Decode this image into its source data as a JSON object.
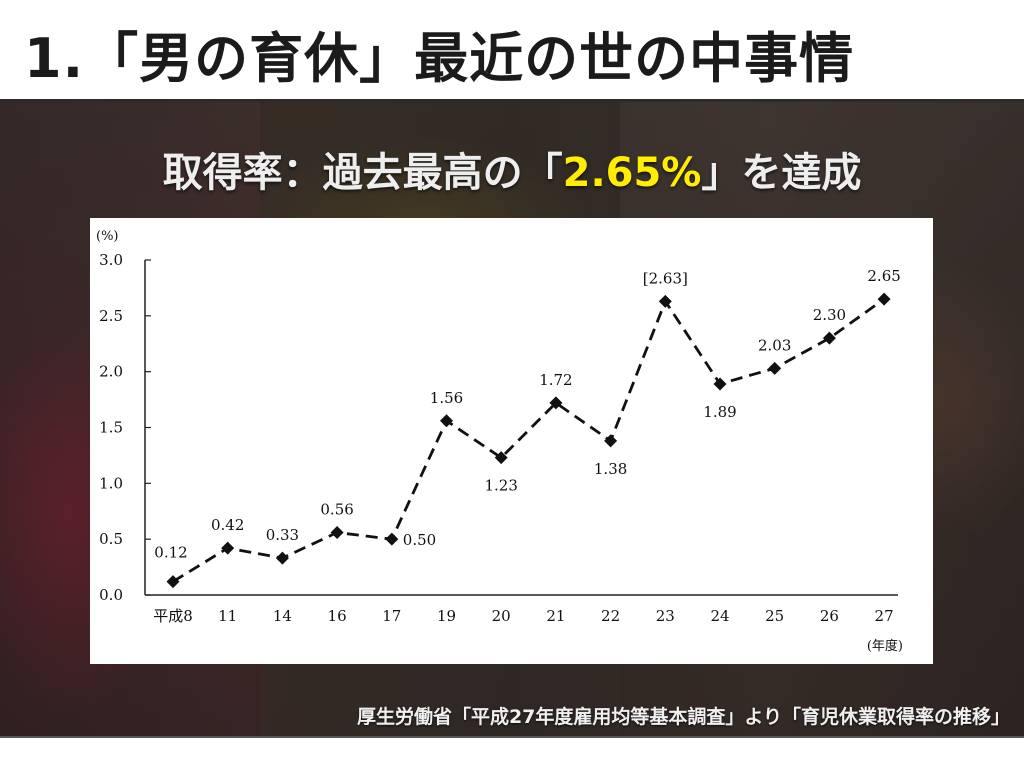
{
  "slide": {
    "title": "1.「男の育休」最近の世の中事情",
    "headline_prefix": "取得率：過去最高の「",
    "headline_value": "2.65%",
    "headline_suffix": "」を達成",
    "source": "厚生労働省「平成27年度雇用均等基本調査」より「育児休業取得率の推移」",
    "colors": {
      "highlight": "#ffee00",
      "title_text": "#1b1b1b",
      "line": "#111111"
    }
  },
  "chart_data": {
    "type": "line",
    "y_unit_label": "(%)",
    "x_unit_label": "(年度)",
    "categories": [
      "平成8",
      "11",
      "14",
      "16",
      "17",
      "19",
      "20",
      "21",
      "22",
      "23",
      "24",
      "25",
      "26",
      "27"
    ],
    "values": [
      0.12,
      0.42,
      0.33,
      0.56,
      0.5,
      1.56,
      1.23,
      1.72,
      1.38,
      2.63,
      1.89,
      2.03,
      2.3,
      2.65
    ],
    "data_labels": [
      "0.12",
      "0.42",
      "0.33",
      "0.56",
      "0.50",
      "1.56",
      "1.23",
      "1.72",
      "1.38",
      "[2.63]",
      "1.89",
      "2.03",
      "2.30",
      "2.65"
    ],
    "y_ticks": [
      "0.0",
      "0.5",
      "1.0",
      "1.5",
      "2.0",
      "2.5",
      "3.0"
    ],
    "ylim": [
      0,
      3.0
    ],
    "line_style": "dashed",
    "marker": "diamond",
    "grid": false
  }
}
